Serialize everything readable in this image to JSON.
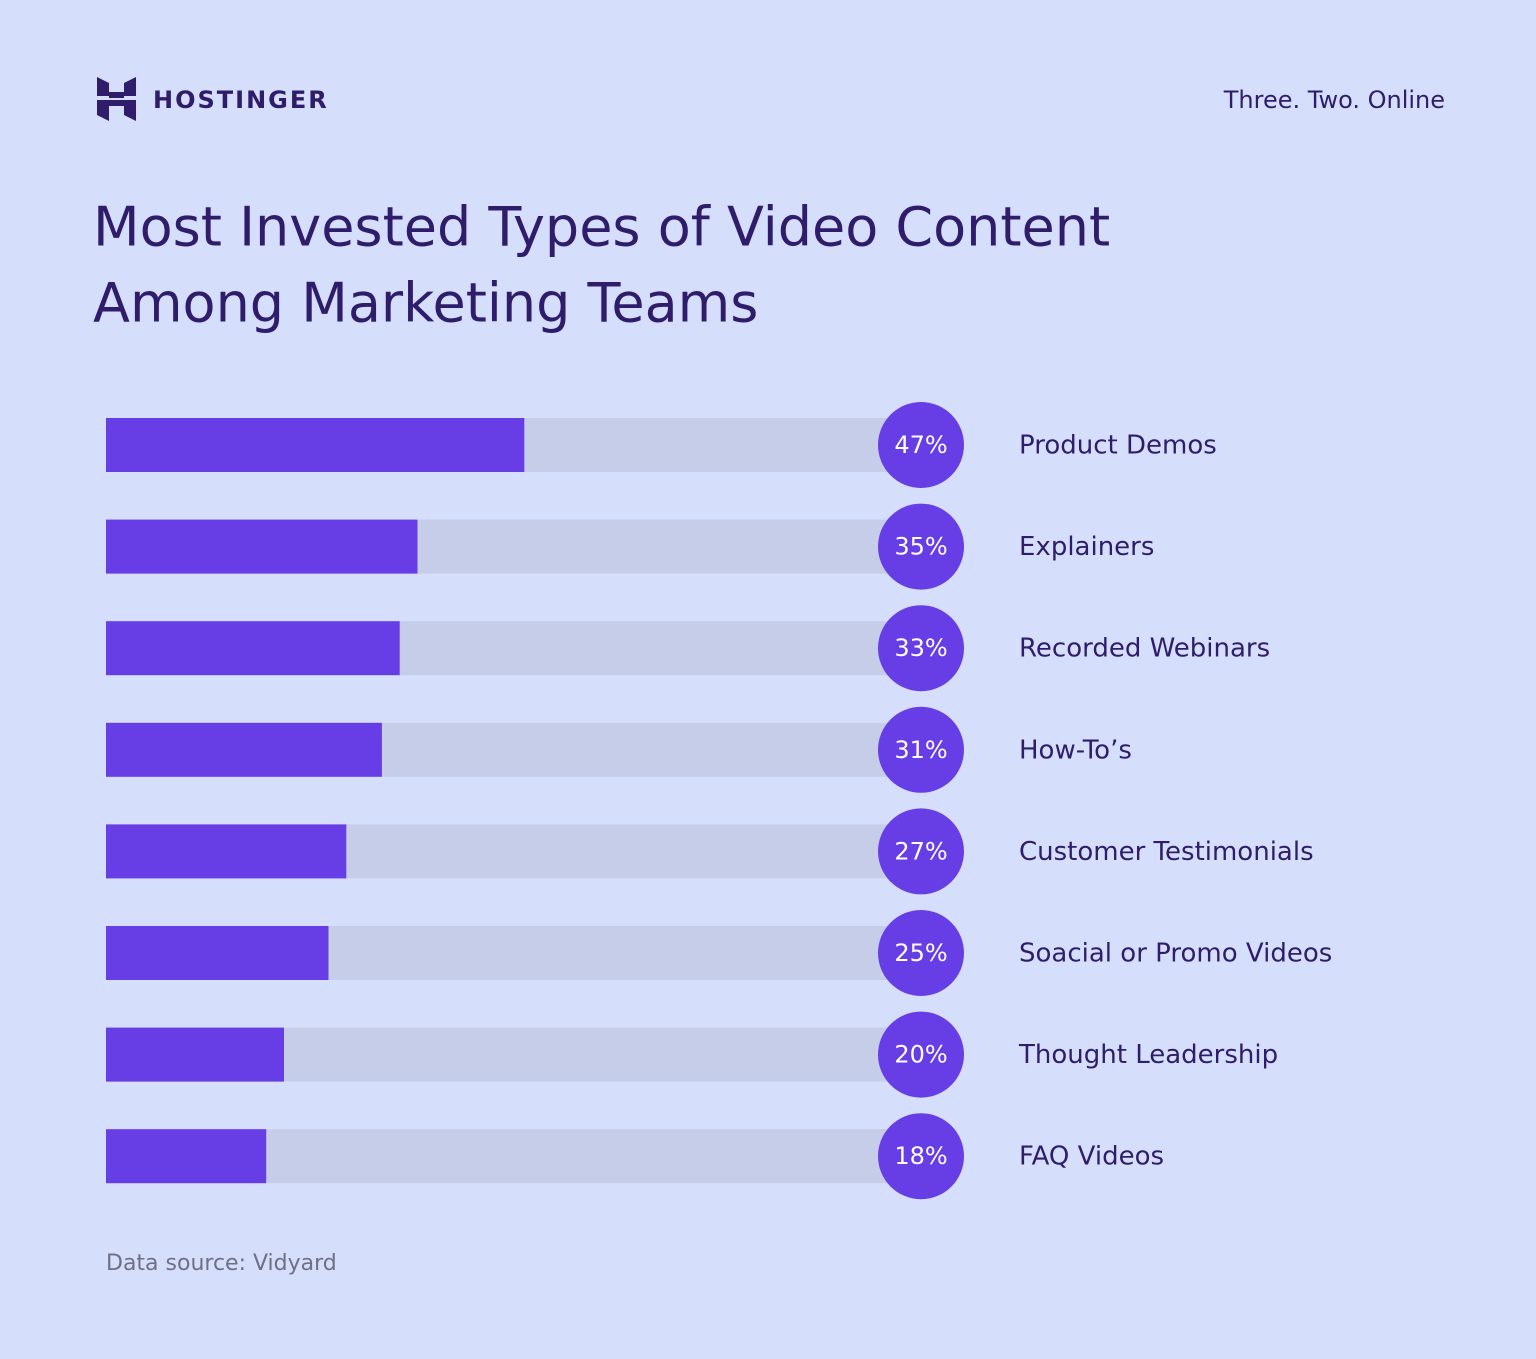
{
  "header": {
    "brand": "HOSTINGER",
    "tagline": "Three. Two. Online"
  },
  "chart_data": {
    "type": "bar",
    "orientation": "horizontal",
    "title": [
      "Most Invested Types of Video Content",
      "Among Marketing Teams"
    ],
    "categories": [
      "Product Demos",
      "Explainers",
      "Recorded Webinars",
      "How-To’s",
      "Customer Testimonials",
      "Soacial or Promo Videos",
      "Thought Leadership",
      "FAQ Videos"
    ],
    "values": [
      47,
      35,
      33,
      31,
      27,
      25,
      20,
      18
    ],
    "value_labels": [
      "47%",
      "35%",
      "33%",
      "31%",
      "27%",
      "25%",
      "20%",
      "18%"
    ],
    "color": "#673de6",
    "track_color": "#c5cde8",
    "xlim": [
      0,
      100
    ],
    "source": "Data source: Vidyard"
  }
}
